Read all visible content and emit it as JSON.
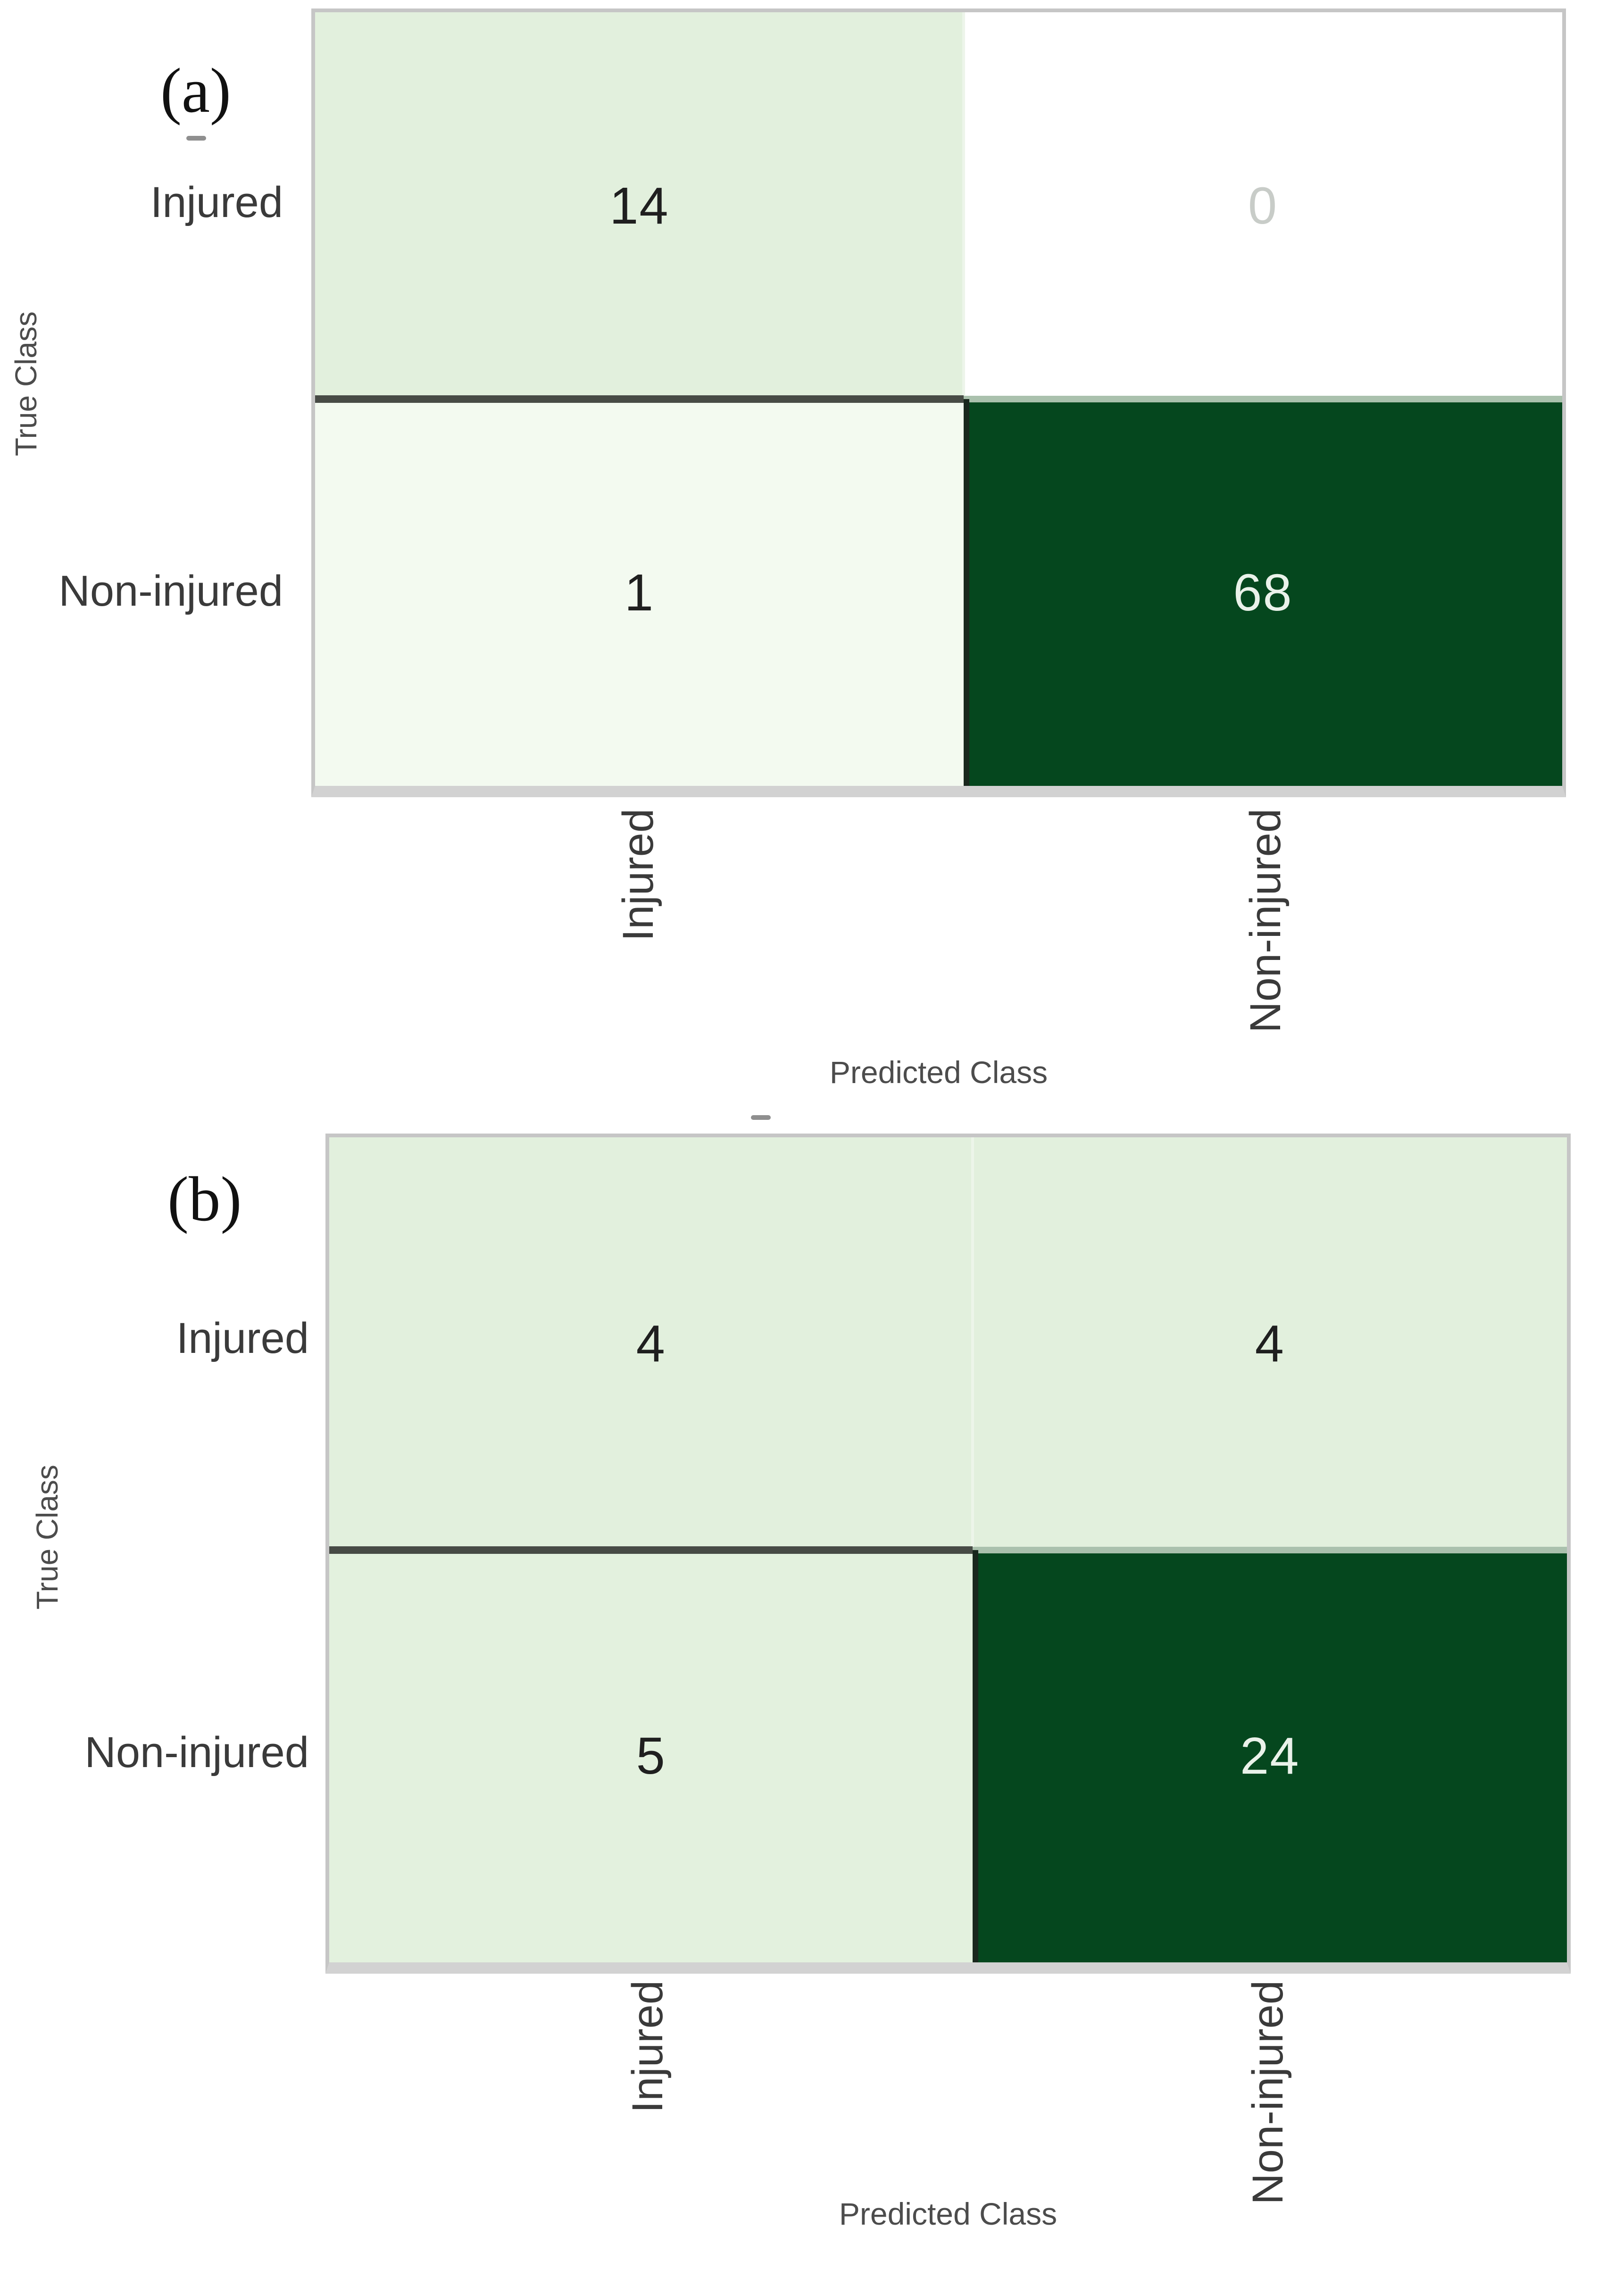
{
  "chart_data": [
    {
      "type": "heatmap",
      "panel_label": "(a)",
      "xlabel": "Predicted Class",
      "ylabel": "True Class",
      "x_categories": [
        "Injured",
        "Non-injured"
      ],
      "y_categories": [
        "Injured",
        "Non-injured"
      ],
      "matrix": [
        [
          14,
          0
        ],
        [
          1,
          68
        ]
      ],
      "cell_bg": [
        [
          "#e2f0dd",
          "#ffffff"
        ],
        [
          "#f3faf0",
          "#05471e"
        ]
      ],
      "cell_fg": [
        [
          "#1f1f1f",
          "#c8ccc8"
        ],
        [
          "#1f1f1f",
          "#eaf2ea"
        ]
      ],
      "legend": "none",
      "grid": "off"
    },
    {
      "type": "heatmap",
      "panel_label": "(b)",
      "xlabel": "Predicted Class",
      "ylabel": "True Class",
      "x_categories": [
        "Injured",
        "Non-injured"
      ],
      "y_categories": [
        "Injured",
        "Non-injured"
      ],
      "matrix": [
        [
          4,
          4
        ],
        [
          5,
          24
        ]
      ],
      "cell_bg": [
        [
          "#e2f0dd",
          "#e2f0dd"
        ],
        [
          "#e3f1de",
          "#05471e"
        ]
      ],
      "cell_fg": [
        [
          "#1f1f1f",
          "#1f1f1f"
        ],
        [
          "#1f1f1f",
          "#eaf2ea"
        ]
      ],
      "legend": "none",
      "grid": "off"
    }
  ],
  "colors": {
    "figure_bg": "#ffffff",
    "matrix_border": "#c6c6c6",
    "matrix_bottom_band": "#d2d2d2",
    "row_divider_left": "#474b45",
    "row_divider_right": "#aac1ad",
    "dark_cell_left_edge": "#19271d",
    "column_separator": "#edf5ea",
    "tick_label": "#3a3a3a",
    "axis_label": "#4c4c4c",
    "panel_label": "#111111",
    "stray_tick_mark": "#8f8f8f"
  }
}
